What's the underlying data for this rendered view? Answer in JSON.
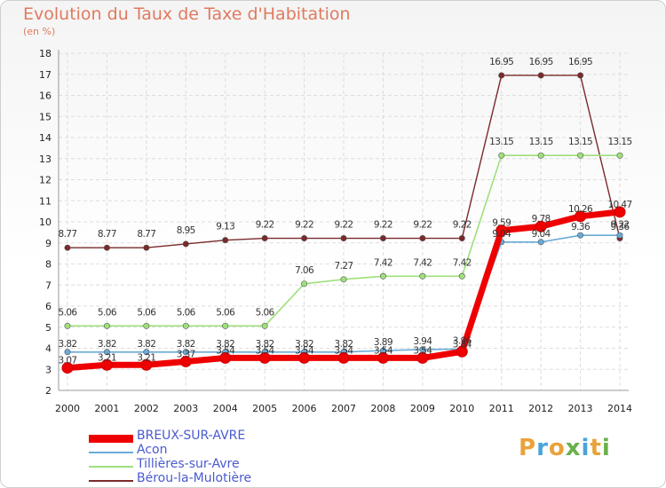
{
  "title": "Evolution du Taux de Taxe d'Habitation",
  "subtitle": "(en %)",
  "logo": {
    "text": "Proxiti",
    "colors": [
      "#e8a33a",
      "#4aa3d8",
      "#e8a33a",
      "#6ab04c",
      "#4aa3d8",
      "#e8a33a",
      "#6ab04c"
    ]
  },
  "chart_data": {
    "type": "line",
    "x": [
      "2000",
      "2001",
      "2002",
      "2003",
      "2004",
      "2005",
      "2006",
      "2007",
      "2008",
      "2009",
      "2010",
      "2011",
      "2012",
      "2013",
      "2014"
    ],
    "ylim": [
      2,
      18
    ],
    "yticks": [
      2,
      3,
      4,
      5,
      6,
      7,
      8,
      9,
      10,
      11,
      12,
      13,
      14,
      15,
      16,
      17,
      18
    ],
    "grid": true,
    "legend_position": "bottom-left",
    "series": [
      {
        "name": "Bérou-la-Mulotière",
        "color": "#7a2a2a",
        "values": [
          8.77,
          8.77,
          8.77,
          8.95,
          9.13,
          9.22,
          9.22,
          9.22,
          9.22,
          9.22,
          9.22,
          16.95,
          16.95,
          16.95,
          9.22
        ],
        "labels": [
          "8.77",
          "8.77",
          "8.77",
          "8.95",
          "9.13",
          "9.22",
          "9.22",
          "9.22",
          "9.22",
          "9.22",
          "9.22",
          "16.95",
          "16.95",
          "16.95",
          "9.22"
        ]
      },
      {
        "name": "Tillières-sur-Avre",
        "color": "#9ee07a",
        "values": [
          5.06,
          5.06,
          5.06,
          5.06,
          5.06,
          5.06,
          7.06,
          7.27,
          7.42,
          7.42,
          7.42,
          13.15,
          13.15,
          13.15,
          13.15
        ],
        "labels": [
          "5.06",
          "5.06",
          "5.06",
          "5.06",
          "5.06",
          "5.06",
          "7.06",
          "7.27",
          "7.42",
          "7.42",
          "7.42",
          "13.15",
          "13.15",
          "13.15",
          "13.15"
        ]
      },
      {
        "name": "Acon",
        "color": "#6aaad6",
        "values": [
          3.82,
          3.82,
          3.82,
          3.82,
          3.82,
          3.82,
          3.82,
          3.82,
          3.89,
          3.94,
          3.96,
          9.04,
          9.04,
          9.36,
          9.36
        ],
        "labels": [
          "3.82",
          "3.82",
          "3.82",
          "3.82",
          "3.82",
          "3.82",
          "3.82",
          "3.82",
          "3.89",
          "3.94",
          "3.96",
          "9.04",
          "9.04",
          "9.36",
          "9.36"
        ]
      },
      {
        "name": "BREUX-SUR-AVRE",
        "color": "#ee0000",
        "values": [
          3.07,
          3.21,
          3.21,
          3.37,
          3.54,
          3.54,
          3.54,
          3.54,
          3.54,
          3.54,
          3.84,
          9.59,
          9.78,
          10.26,
          10.47
        ],
        "labels": [
          "3.07",
          "3.21",
          "3.21",
          "3.37",
          "3.54",
          "3.54",
          "3.54",
          "3.54",
          "3.54",
          "3.54",
          "3.84",
          "9.59",
          "9.78",
          "10.26",
          "10.47"
        ]
      }
    ],
    "legend": [
      "BREUX-SUR-AVRE",
      "Acon",
      "Tillières-sur-Avre",
      "Bérou-la-Mulotière"
    ]
  }
}
